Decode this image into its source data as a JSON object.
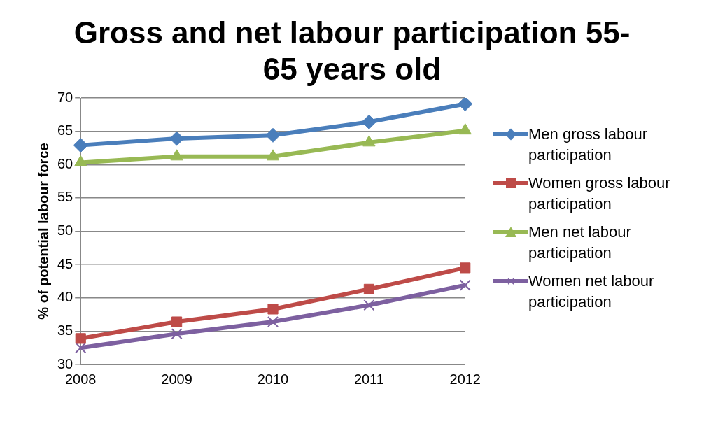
{
  "chart_data": {
    "type": "line",
    "title": "Gross and net labour participation 55-65 years old",
    "ylabel": "% of potential labour force",
    "categories": [
      "2008",
      "2009",
      "2010",
      "2011",
      "2012"
    ],
    "ylim": [
      30,
      70
    ],
    "yticks": [
      30,
      35,
      40,
      45,
      50,
      55,
      60,
      65,
      70
    ],
    "grid": "y",
    "legend": "right",
    "series": [
      {
        "name": "Men gross labour participation",
        "color": "#4a7ebb",
        "marker": "diamond",
        "values": [
          62.9,
          63.9,
          64.4,
          66.4,
          69.1
        ]
      },
      {
        "name": "Women gross labour participation",
        "color": "#be4b48",
        "marker": "square",
        "values": [
          33.9,
          36.4,
          38.3,
          41.3,
          44.5
        ]
      },
      {
        "name": "Men net labour participation",
        "color": "#98b954",
        "marker": "triangle",
        "values": [
          60.3,
          61.2,
          61.2,
          63.3,
          65.1
        ]
      },
      {
        "name": "Women net labour participation",
        "color": "#7d60a0",
        "marker": "cross",
        "values": [
          32.5,
          34.6,
          36.4,
          38.9,
          41.9
        ]
      }
    ]
  }
}
